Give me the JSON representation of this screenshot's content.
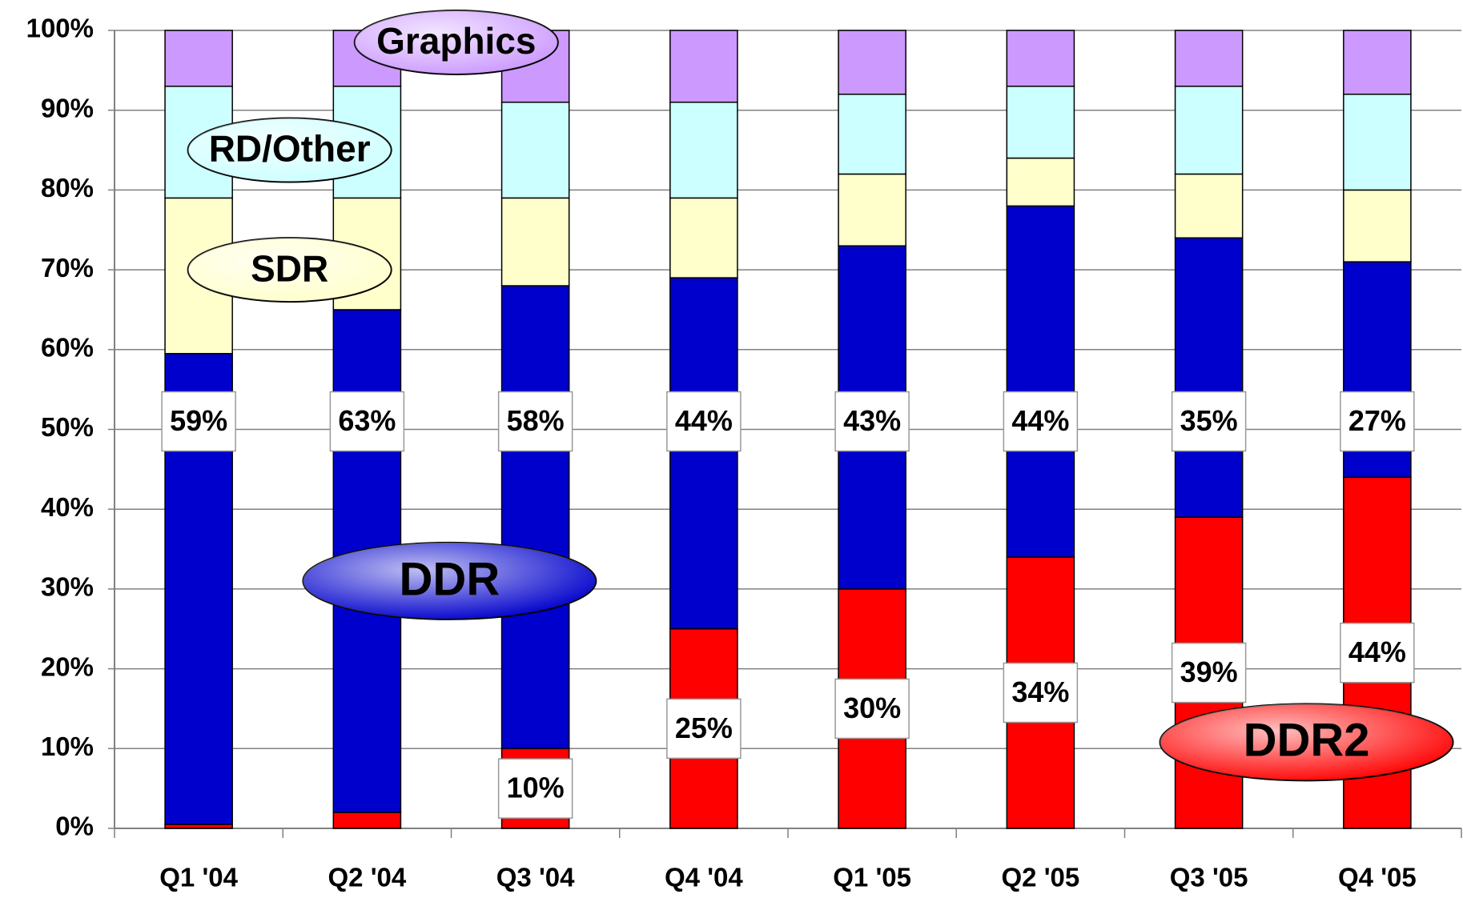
{
  "chart_data": {
    "type": "stacked_bar",
    "categories": [
      "Q1 '04",
      "Q2 '04",
      "Q3 '04",
      "Q4 '04",
      "Q1 '05",
      "Q2 '05",
      "Q3 '05",
      "Q4 '05"
    ],
    "series": [
      {
        "name": "DDR2",
        "color": "#ff0000",
        "values": [
          0.5,
          2,
          10,
          25,
          30,
          34,
          39,
          44
        ],
        "value_labels": [
          null,
          null,
          "10%",
          "25%",
          "30%",
          "34%",
          "39%",
          "44%"
        ]
      },
      {
        "name": "DDR",
        "color": "#0000cc",
        "values": [
          59,
          63,
          58,
          44,
          43,
          44,
          35,
          27
        ],
        "value_labels": [
          "59%",
          "63%",
          "58%",
          "44%",
          "43%",
          "44%",
          "35%",
          "27%"
        ]
      },
      {
        "name": "SDR",
        "color": "#ffffcc",
        "values": [
          19.5,
          14,
          11,
          10,
          9,
          6,
          8,
          9
        ]
      },
      {
        "name": "RD/Other",
        "color": "#ccffff",
        "values": [
          14,
          14,
          12,
          12,
          10,
          9,
          11,
          12
        ]
      },
      {
        "name": "Graphics",
        "color": "#cc99ff",
        "values": [
          7,
          7,
          9,
          9,
          8,
          7,
          7,
          8
        ]
      }
    ],
    "ylim": [
      0,
      100
    ],
    "yticks": [
      {
        "value": 0,
        "label": "0%"
      },
      {
        "value": 10,
        "label": "10%"
      },
      {
        "value": 20,
        "label": "20%"
      },
      {
        "value": 30,
        "label": "30%"
      },
      {
        "value": 40,
        "label": "40%"
      },
      {
        "value": 50,
        "label": "50%"
      },
      {
        "value": 60,
        "label": "60%"
      },
      {
        "value": 70,
        "label": "70%"
      },
      {
        "value": 80,
        "label": "80%"
      },
      {
        "value": 90,
        "label": "90%"
      },
      {
        "value": 100,
        "label": "100%"
      }
    ],
    "grid": true
  }
}
